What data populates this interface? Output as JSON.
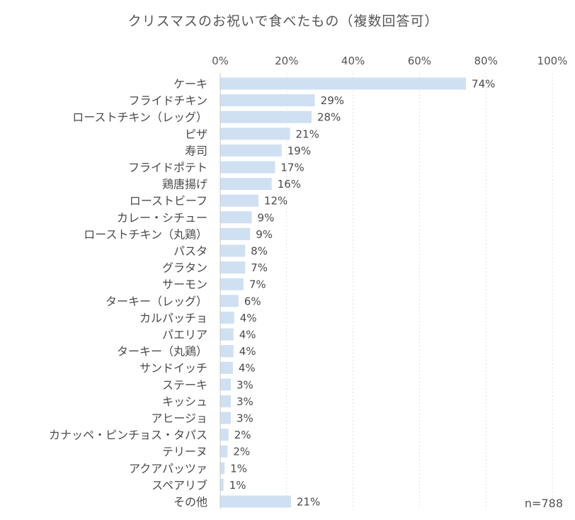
{
  "chart_data": {
    "type": "bar",
    "orientation": "horizontal",
    "title": "クリスマスのお祝いで食べたもの（複数回答可）",
    "note": "n=788",
    "xlabel": "",
    "ylabel": "",
    "xlim": [
      0,
      100
    ],
    "x_ticks": [
      "0%",
      "20%",
      "40%",
      "60%",
      "80%",
      "100%"
    ],
    "x_tick_values": [
      0,
      20,
      40,
      60,
      80,
      100
    ],
    "x_axis_position": "top",
    "grid": true,
    "legend": "none",
    "bar_color": "#cfe0f2",
    "value_suffix": "%",
    "categories": [
      "ケーキ",
      "フライドチキン",
      "ローストチキン（レッグ）",
      "ピザ",
      "寿司",
      "フライドポテト",
      "鶏唐揚げ",
      "ローストビーフ",
      "カレー・シチュー",
      "ローストチキン（丸鶏）",
      "パスタ",
      "グラタン",
      "サーモン",
      "ターキー（レッグ）",
      "カルパッチョ",
      "パエリア",
      "ターキー（丸鶏）",
      "サンドイッチ",
      "ステーキ",
      "キッシュ",
      "アヒージョ",
      "カナッペ・ピンチョス・タパス",
      "テリーヌ",
      "アクアパッツァ",
      "スペアリブ",
      "その他"
    ],
    "values": [
      74,
      29,
      28,
      21,
      19,
      17,
      16,
      12,
      9,
      9,
      8,
      7,
      7,
      6,
      4,
      4,
      4,
      4,
      3,
      3,
      3,
      2,
      2,
      1,
      1,
      21
    ],
    "bar_values": [
      74,
      28.5,
      27.5,
      21,
      18.5,
      16.5,
      15.5,
      11.5,
      9.5,
      9,
      7.5,
      7.5,
      7,
      5.5,
      4.2,
      4,
      4,
      3.8,
      3.2,
      3.2,
      3.2,
      2.5,
      2.2,
      1.3,
      1,
      21.3
    ],
    "value_labels": [
      "74%",
      "29%",
      "28%",
      "21%",
      "19%",
      "17%",
      "16%",
      "12%",
      "9%",
      "9%",
      "8%",
      "7%",
      "7%",
      "6%",
      "4%",
      "4%",
      "4%",
      "4%",
      "3%",
      "3%",
      "3%",
      "2%",
      "2%",
      "1%",
      "1%",
      "21%"
    ]
  }
}
